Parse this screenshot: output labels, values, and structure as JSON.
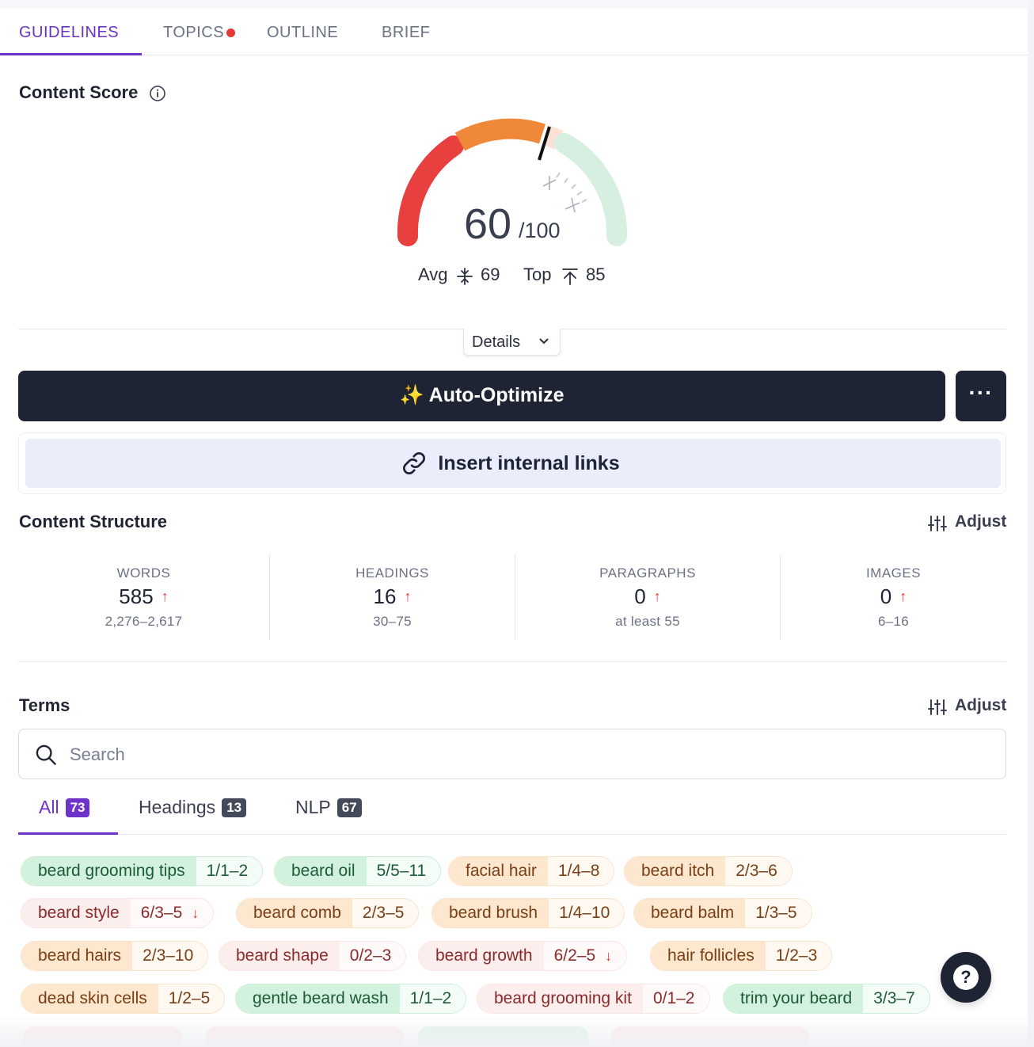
{
  "tabs": [
    {
      "label": "GUIDELINES",
      "active": true
    },
    {
      "label": "TOPICS",
      "active": false,
      "notification": true
    },
    {
      "label": "OUTLINE",
      "active": false
    },
    {
      "label": "BRIEF",
      "active": false
    }
  ],
  "content_score": {
    "title": "Content Score",
    "score": "60",
    "max": "/100",
    "score_value": 60,
    "avg_label": "Avg",
    "avg_value": "69",
    "top_label": "Top",
    "top_value": "85",
    "details_label": "Details"
  },
  "actions": {
    "auto_optimize": "✨ Auto-Optimize",
    "more": "···",
    "insert_links": "Insert internal links"
  },
  "content_structure": {
    "title": "Content Structure",
    "adjust_label": "Adjust",
    "stats": [
      {
        "label": "WORDS",
        "value": "585",
        "arrow": "↑",
        "range": "2,276–2,617"
      },
      {
        "label": "HEADINGS",
        "value": "16",
        "arrow": "↑",
        "range": "30–75"
      },
      {
        "label": "PARAGRAPHS",
        "value": "0",
        "arrow": "↑",
        "range": "at least 55"
      },
      {
        "label": "IMAGES",
        "value": "0",
        "arrow": "↑",
        "range": "6–16"
      }
    ]
  },
  "terms": {
    "title": "Terms",
    "adjust_label": "Adjust",
    "search_placeholder": "Search",
    "subtabs": [
      {
        "label": "All",
        "count": "73",
        "active": true
      },
      {
        "label": "Headings",
        "count": "13",
        "active": false
      },
      {
        "label": "NLP",
        "count": "67",
        "active": false
      }
    ],
    "chips": [
      {
        "term": "beard grooming tips",
        "count": "1/1–2",
        "status": "green"
      },
      {
        "term": "beard oil",
        "count": "5/5–11",
        "status": "green"
      },
      {
        "term": "facial hair",
        "count": "1/4–8",
        "status": "orange"
      },
      {
        "term": "beard itch",
        "count": "2/3–6",
        "status": "orange"
      },
      {
        "term": "beard style",
        "count": "6/3–5",
        "status": "red",
        "over": "↓"
      },
      {
        "term": "beard comb",
        "count": "2/3–5",
        "status": "orange"
      },
      {
        "term": "beard brush",
        "count": "1/4–10",
        "status": "orange"
      },
      {
        "term": "beard balm",
        "count": "1/3–5",
        "status": "orange"
      },
      {
        "term": "beard hairs",
        "count": "2/3–10",
        "status": "orange"
      },
      {
        "term": "beard shape",
        "count": "0/2–3",
        "status": "red"
      },
      {
        "term": "beard growth",
        "count": "6/2–5",
        "status": "red",
        "over": "↓"
      },
      {
        "term": "hair follicles",
        "count": "1/2–3",
        "status": "orange"
      },
      {
        "term": "dead skin cells",
        "count": "1/2–5",
        "status": "orange"
      },
      {
        "term": "gentle beard wash",
        "count": "1/1–2",
        "status": "green"
      },
      {
        "term": "beard grooming kit",
        "count": "0/1–2",
        "status": "red"
      },
      {
        "term": "trim your beard",
        "count": "3/3–7",
        "status": "green"
      }
    ]
  },
  "colors": {
    "accent": "#6d32c9",
    "dark": "#1f2435",
    "gauge_red": "#e8403f",
    "gauge_orange": "#f0883a",
    "gauge_peach": "#fde1d5",
    "gauge_green": "#d6efe0"
  },
  "help": "?"
}
